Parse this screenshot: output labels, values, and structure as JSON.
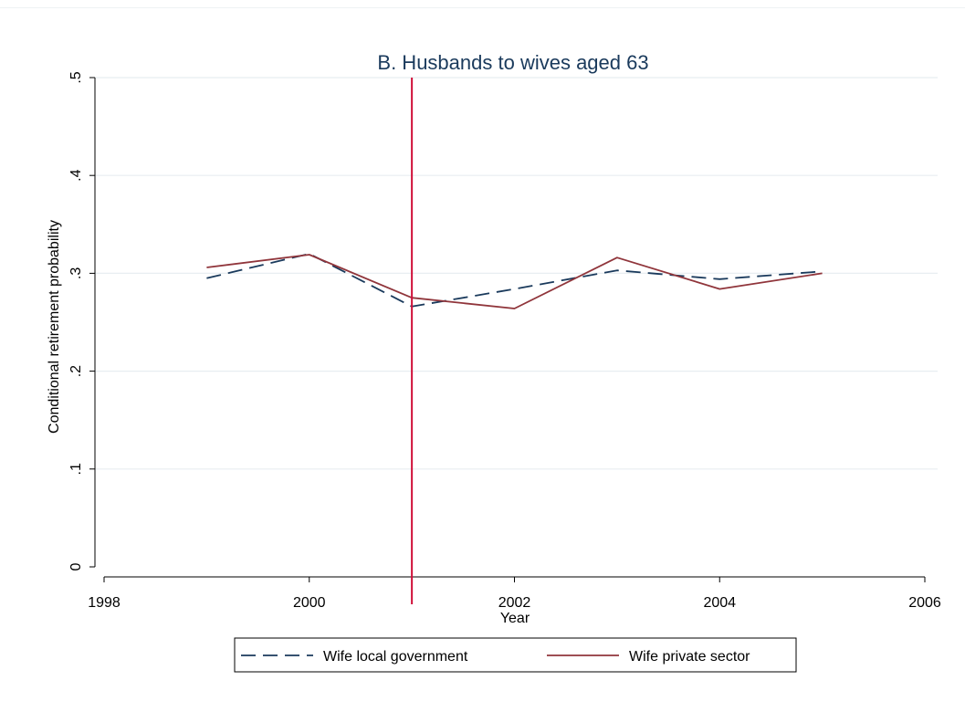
{
  "chart_data": {
    "type": "line",
    "title": "B. Husbands to wives aged 63",
    "xlabel": "Year",
    "ylabel": "Conditional retirement probability",
    "xlim": [
      1998,
      2006
    ],
    "ylim": [
      0,
      0.5
    ],
    "x_ticks": [
      1998,
      2000,
      2002,
      2004,
      2006
    ],
    "x_tick_labels": [
      "1998",
      "2000",
      "2002",
      "2004",
      "2006"
    ],
    "y_ticks": [
      0,
      0.1,
      0.2,
      0.3,
      0.4,
      0.5
    ],
    "y_tick_labels": [
      "0",
      ".1",
      ".2",
      ".3",
      ".4",
      ".5"
    ],
    "grid": true,
    "legend_position": "bottom",
    "reference_line": {
      "x": 2001,
      "color": "#d0103a"
    },
    "series": [
      {
        "name": "Wife local government",
        "style": "dashed",
        "color": "#1a3a5c",
        "x": [
          1999,
          2000,
          2001,
          2002,
          2003,
          2004,
          2005
        ],
        "values": [
          0.295,
          0.32,
          0.266,
          0.284,
          0.303,
          0.294,
          0.302
        ]
      },
      {
        "name": "Wife private sector",
        "style": "solid",
        "color": "#90353b",
        "x": [
          1999,
          2000,
          2001,
          2002,
          2003,
          2004,
          2005
        ],
        "values": [
          0.306,
          0.319,
          0.275,
          0.264,
          0.316,
          0.284,
          0.3
        ]
      }
    ]
  }
}
